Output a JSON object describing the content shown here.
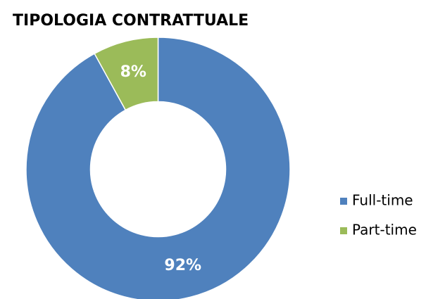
{
  "chart_data": {
    "type": "donut",
    "title": "TIPOLOGIA CONTRATTUALE",
    "categories": [
      "Full-time",
      "Part-time"
    ],
    "values": [
      92,
      8
    ],
    "value_labels": [
      "92%",
      "8%"
    ],
    "colors": [
      "#4f81bd",
      "#9bbb59"
    ],
    "legend": "right"
  }
}
